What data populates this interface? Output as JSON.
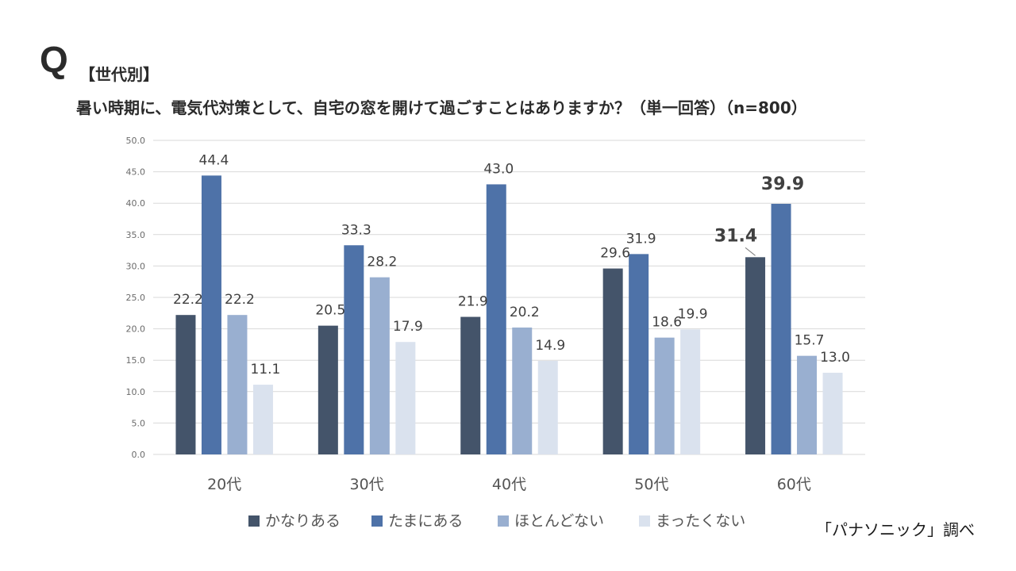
{
  "header": {
    "q_mark": "Q",
    "tag": "【世代別】",
    "question": "暑い時期に、電気代対策として、自宅の窓を開けて過ごすことはありますか？（単一回答）（n=800）"
  },
  "source": "「パナソニック」調べ",
  "colors": {
    "series": [
      "#44546a",
      "#4e72a8",
      "#99afd0",
      "#dae2ee"
    ],
    "grid": "#d9d9d9"
  },
  "chart_data": {
    "type": "bar",
    "categories": [
      "20代",
      "30代",
      "40代",
      "50代",
      "60代"
    ],
    "series": [
      {
        "name": "かなりある",
        "values": [
          22.2,
          20.5,
          21.9,
          29.6,
          31.4
        ]
      },
      {
        "name": "たまにある",
        "values": [
          44.4,
          33.3,
          43.0,
          31.9,
          39.9
        ]
      },
      {
        "name": "ほとんどない",
        "values": [
          22.2,
          28.2,
          20.2,
          18.6,
          15.7
        ]
      },
      {
        "name": "まったくない",
        "values": [
          11.1,
          17.9,
          14.9,
          19.9,
          13.0
        ]
      }
    ],
    "value_labels": [
      [
        "22.2",
        "20.5",
        "21.9",
        "29.6",
        "31.4"
      ],
      [
        "44.4",
        "33.3",
        "43.0",
        "31.9",
        "39.9"
      ],
      [
        "22.2",
        "28.2",
        "20.2",
        "18.6",
        "15.7"
      ],
      [
        "11.1",
        "17.9",
        "14.9",
        "19.9",
        "13.0"
      ]
    ],
    "highlighted": [
      [
        0,
        4
      ],
      [
        1,
        4
      ]
    ],
    "yticks": [
      "0.0",
      "5.0",
      "10.0",
      "15.0",
      "20.0",
      "25.0",
      "30.0",
      "35.0",
      "40.0",
      "45.0",
      "50.0"
    ],
    "ylim": [
      0,
      50
    ],
    "grid": true,
    "legend_position": "bottom"
  }
}
